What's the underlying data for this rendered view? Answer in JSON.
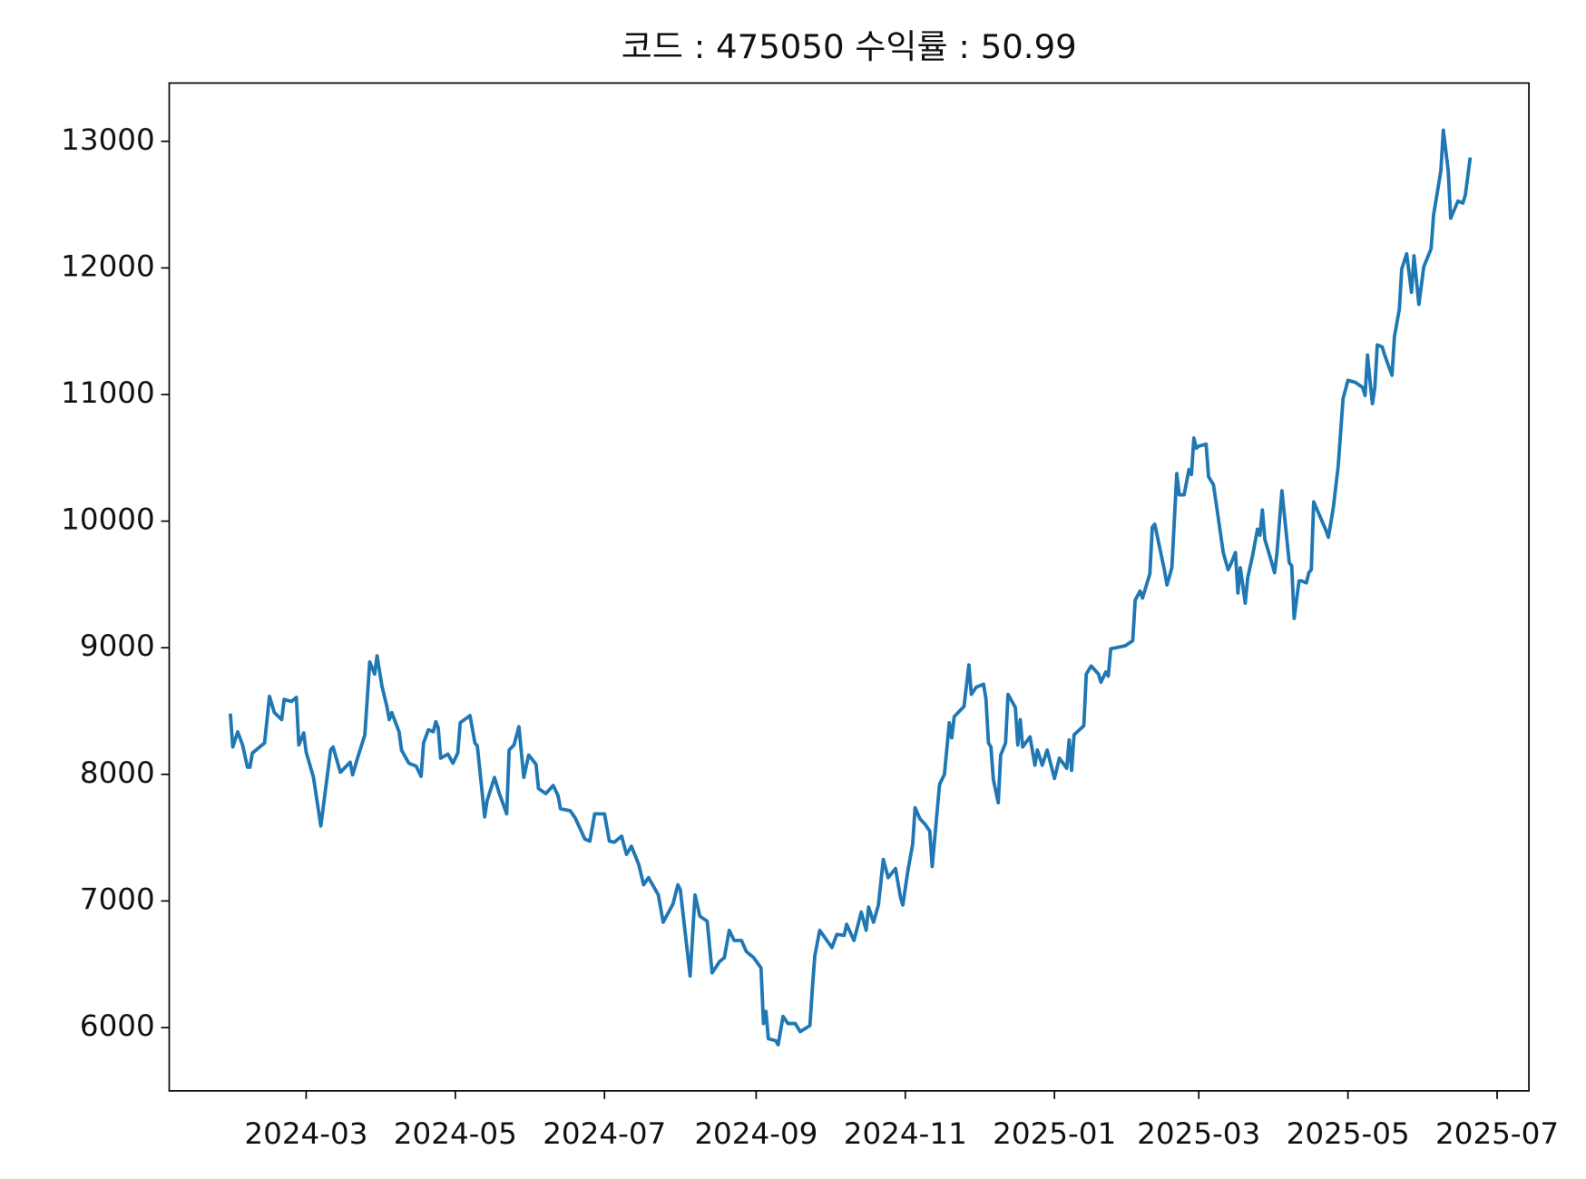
{
  "chart_data": {
    "type": "line",
    "title": "코드 : 475050 수익률 : 50.99",
    "x": [
      "2024-01-30",
      "2024-01-31",
      "2024-02-02",
      "2024-02-04",
      "2024-02-06",
      "2024-02-07",
      "2024-02-08",
      "2024-02-13",
      "2024-02-15",
      "2024-02-17",
      "2024-02-20",
      "2024-02-21",
      "2024-02-24",
      "2024-02-26",
      "2024-02-27",
      "2024-02-29",
      "2024-03-01",
      "2024-03-04",
      "2024-03-07",
      "2024-03-11",
      "2024-03-12",
      "2024-03-15",
      "2024-03-19",
      "2024-03-20",
      "2024-03-22",
      "2024-03-25",
      "2024-03-27",
      "2024-03-29",
      "2024-03-30",
      "2024-04-01",
      "2024-04-03",
      "2024-04-04",
      "2024-04-05",
      "2024-04-08",
      "2024-04-09",
      "2024-04-12",
      "2024-04-15",
      "2024-04-17",
      "2024-04-18",
      "2024-04-20",
      "2024-04-22",
      "2024-04-23",
      "2024-04-24",
      "2024-04-25",
      "2024-04-28",
      "2024-04-30",
      "2024-05-02",
      "2024-05-03",
      "2024-05-07",
      "2024-05-09",
      "2024-05-10",
      "2024-05-13",
      "2024-05-14",
      "2024-05-17",
      "2024-05-19",
      "2024-05-22",
      "2024-05-23",
      "2024-05-25",
      "2024-05-27",
      "2024-05-29",
      "2024-05-31",
      "2024-06-03",
      "2024-06-04",
      "2024-06-07",
      "2024-06-10",
      "2024-06-12",
      "2024-06-13",
      "2024-06-17",
      "2024-06-19",
      "2024-06-23",
      "2024-06-25",
      "2024-06-27",
      "2024-07-01",
      "2024-07-03",
      "2024-07-05",
      "2024-07-08",
      "2024-07-10",
      "2024-07-12",
      "2024-07-15",
      "2024-07-17",
      "2024-07-19",
      "2024-07-23",
      "2024-07-25",
      "2024-07-29",
      "2024-07-31",
      "2024-08-01",
      "2024-08-05",
      "2024-08-07",
      "2024-08-09",
      "2024-08-12",
      "2024-08-14",
      "2024-08-17",
      "2024-08-19",
      "2024-08-21",
      "2024-08-23",
      "2024-08-26",
      "2024-08-28",
      "2024-08-31",
      "2024-09-03",
      "2024-09-04",
      "2024-09-05",
      "2024-09-06",
      "2024-09-09",
      "2024-09-10",
      "2024-09-12",
      "2024-09-14",
      "2024-09-17",
      "2024-09-19",
      "2024-09-23",
      "2024-09-24",
      "2024-09-25",
      "2024-09-27",
      "2024-10-02",
      "2024-10-04",
      "2024-10-07",
      "2024-10-08",
      "2024-10-11",
      "2024-10-14",
      "2024-10-16",
      "2024-10-17",
      "2024-10-19",
      "2024-10-21",
      "2024-10-23",
      "2024-10-25",
      "2024-10-28",
      "2024-10-30",
      "2024-10-31",
      "2024-11-02",
      "2024-11-04",
      "2024-11-05",
      "2024-11-07",
      "2024-11-09",
      "2024-11-11",
      "2024-11-12",
      "2024-11-15",
      "2024-11-17",
      "2024-11-19",
      "2024-11-20",
      "2024-11-21",
      "2024-11-25",
      "2024-11-27",
      "2024-11-28",
      "2024-11-30",
      "2024-12-03",
      "2024-12-04",
      "2024-12-05",
      "2024-12-06",
      "2024-12-07",
      "2024-12-09",
      "2024-12-10",
      "2024-12-12",
      "2024-12-13",
      "2024-12-16",
      "2024-12-17",
      "2024-12-18",
      "2024-12-19",
      "2024-12-22",
      "2024-12-24",
      "2024-12-25",
      "2024-12-27",
      "2024-12-29",
      "2025-01-01",
      "2025-01-03",
      "2025-01-06",
      "2025-01-07",
      "2025-01-08",
      "2025-01-09",
      "2025-01-13",
      "2025-01-14",
      "2025-01-16",
      "2025-01-19",
      "2025-01-20",
      "2025-01-22",
      "2025-01-23",
      "2025-01-24",
      "2025-01-30",
      "2025-02-02",
      "2025-02-03",
      "2025-02-05",
      "2025-02-06",
      "2025-02-09",
      "2025-02-10",
      "2025-02-11",
      "2025-02-13",
      "2025-02-15",
      "2025-02-16",
      "2025-02-18",
      "2025-02-20",
      "2025-02-21",
      "2025-02-23",
      "2025-02-25",
      "2025-02-26",
      "2025-02-27",
      "2025-02-28",
      "2025-03-01",
      "2025-03-04",
      "2025-03-05",
      "2025-03-07",
      "2025-03-10",
      "2025-03-11",
      "2025-03-13",
      "2025-03-14",
      "2025-03-16",
      "2025-03-17",
      "2025-03-18",
      "2025-03-20",
      "2025-03-21",
      "2025-03-23",
      "2025-03-25",
      "2025-03-26",
      "2025-03-27",
      "2025-03-28",
      "2025-03-30",
      "2025-04-01",
      "2025-04-02",
      "2025-04-04",
      "2025-04-07",
      "2025-04-08",
      "2025-04-09",
      "2025-04-11",
      "2025-04-12",
      "2025-04-14",
      "2025-04-15",
      "2025-04-16",
      "2025-04-17",
      "2025-04-22",
      "2025-04-23",
      "2025-04-25",
      "2025-04-27",
      "2025-04-29",
      "2025-05-01",
      "2025-05-04",
      "2025-05-07",
      "2025-05-08",
      "2025-05-09",
      "2025-05-10",
      "2025-05-11",
      "2025-05-12",
      "2025-05-13",
      "2025-05-15",
      "2025-05-16",
      "2025-05-19",
      "2025-05-20",
      "2025-05-22",
      "2025-05-23",
      "2025-05-25",
      "2025-05-27",
      "2025-05-28",
      "2025-05-30",
      "2025-06-01",
      "2025-06-04",
      "2025-06-05",
      "2025-06-08",
      "2025-06-09",
      "2025-06-11",
      "2025-06-12",
      "2025-06-15",
      "2025-06-17",
      "2025-06-18",
      "2025-06-20"
    ],
    "values": [
      8480,
      8216,
      8336,
      8232,
      8056,
      8056,
      8168,
      8248,
      8616,
      8488,
      8432,
      8592,
      8576,
      8608,
      8232,
      8328,
      8176,
      7976,
      7592,
      8192,
      8216,
      8016,
      8096,
      7996,
      8128,
      8312,
      8888,
      8792,
      8936,
      8696,
      8536,
      8432,
      8488,
      8336,
      8192,
      8088,
      8064,
      7984,
      8248,
      8352,
      8336,
      8416,
      8368,
      8128,
      8160,
      8088,
      8168,
      8408,
      8464,
      8248,
      8224,
      7664,
      7792,
      7976,
      7848,
      7688,
      8192,
      8232,
      8376,
      7976,
      8152,
      8080,
      7888,
      7848,
      7912,
      7832,
      7728,
      7712,
      7656,
      7488,
      7472,
      7688,
      7688,
      7472,
      7464,
      7512,
      7368,
      7432,
      7288,
      7128,
      7184,
      7048,
      6832,
      6976,
      7128,
      7088,
      6408,
      7048,
      6880,
      6840,
      6432,
      6520,
      6552,
      6768,
      6688,
      6688,
      6600,
      6552,
      6472,
      6032,
      6128,
      5912,
      5896,
      5864,
      6088,
      6032,
      6032,
      5968,
      6016,
      6312,
      6568,
      6768,
      6632,
      6736,
      6728,
      6816,
      6688,
      6912,
      6768,
      6952,
      6832,
      6968,
      7328,
      7184,
      7256,
      7032,
      6968,
      7232,
      7448,
      7736,
      7648,
      7608,
      7552,
      7272,
      7920,
      8000,
      8408,
      8288,
      8456,
      8536,
      8864,
      8632,
      8688,
      8712,
      8592,
      8248,
      8216,
      7960,
      7776,
      8152,
      8248,
      8632,
      8528,
      8232,
      8432,
      8216,
      8296,
      8072,
      8192,
      8072,
      8192,
      7968,
      8128,
      8048,
      8272,
      8032,
      8312,
      8384,
      8792,
      8856,
      8792,
      8728,
      8808,
      8776,
      8992,
      9016,
      9056,
      9376,
      9448,
      9392,
      9584,
      9952,
      9976,
      9792,
      9608,
      9496,
      9632,
      10376,
      10208,
      10208,
      10408,
      10368,
      10656,
      10576,
      10592,
      10608,
      10352,
      10288,
      9888,
      9752,
      9616,
      9656,
      9752,
      9432,
      9632,
      9352,
      9552,
      9728,
      9936,
      9888,
      10088,
      9856,
      9728,
      9592,
      9752,
      10240,
      9672,
      9648,
      9232,
      9528,
      9528,
      9512,
      9592,
      9616,
      10152,
      9928,
      9872,
      10104,
      10432,
      10968,
      11112,
      11096,
      11056,
      10992,
      11312,
      11112,
      10928,
      11056,
      11392,
      11376,
      11312,
      11152,
      11456,
      11672,
      11992,
      12112,
      11808,
      12096,
      11712,
      12008,
      12152,
      12416,
      12768,
      13088,
      12768,
      12392,
      12528,
      12512,
      12576,
      12872
    ],
    "color": "#1f77b4",
    "xlim": [
      "2024-01-05",
      "2025-07-14"
    ],
    "xticks": [
      "2024-03",
      "2024-05",
      "2024-07",
      "2024-09",
      "2024-11",
      "2025-01",
      "2025-03",
      "2025-05",
      "2025-07"
    ],
    "ylim": [
      5500,
      13460
    ],
    "yticks": [
      6000,
      7000,
      8000,
      9000,
      10000,
      11000,
      12000,
      13000
    ],
    "grid": false
  }
}
